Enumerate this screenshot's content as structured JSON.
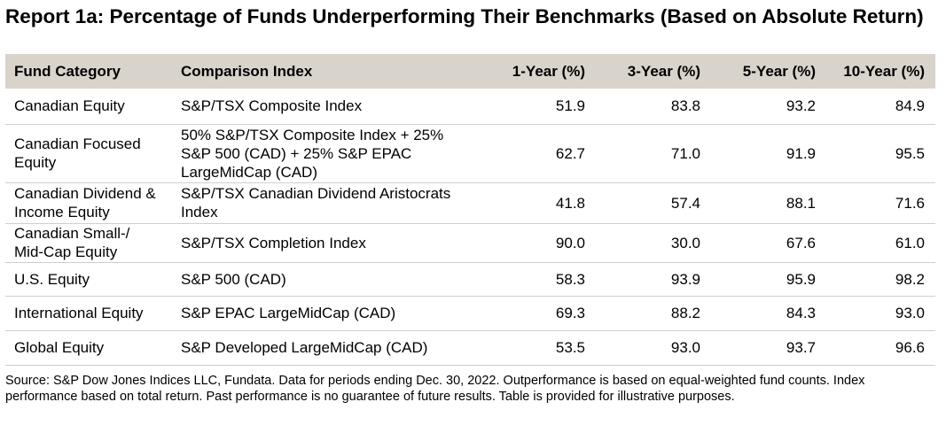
{
  "title": "Report 1a: Percentage of Funds Underperforming Their Benchmarks (Based on Absolute Return)",
  "chart_data": {
    "type": "table",
    "columns": [
      "Fund Category",
      "Comparison Index",
      "1-Year (%)",
      "3-Year (%)",
      "5-Year (%)",
      "10-Year (%)"
    ],
    "rows": [
      {
        "category": "Canadian Equity",
        "index": "S&P/TSX Composite Index",
        "y1": "51.9",
        "y3": "83.8",
        "y5": "93.2",
        "y10": "84.9"
      },
      {
        "category": "Canadian Focused Equity",
        "index": "50% S&P/TSX Composite Index + 25% S&P 500 (CAD) + 25% S&P EPAC LargeMidCap (CAD)",
        "y1": "62.7",
        "y3": "71.0",
        "y5": "91.9",
        "y10": "95.5"
      },
      {
        "category": "Canadian Dividend & Income Equity",
        "index": "S&P/TSX Canadian Dividend Aristocrats Index",
        "y1": "41.8",
        "y3": "57.4",
        "y5": "88.1",
        "y10": "71.6"
      },
      {
        "category": "Canadian Small-/ Mid-Cap Equity",
        "index": "S&P/TSX Completion Index",
        "y1": "90.0",
        "y3": "30.0",
        "y5": "67.6",
        "y10": "61.0"
      },
      {
        "category": "U.S. Equity",
        "index": "S&P 500 (CAD)",
        "y1": "58.3",
        "y3": "93.9",
        "y5": "95.9",
        "y10": "98.2"
      },
      {
        "category": "International Equity",
        "index": "S&P EPAC LargeMidCap (CAD)",
        "y1": "69.3",
        "y3": "88.2",
        "y5": "84.3",
        "y10": "93.0"
      },
      {
        "category": "Global Equity",
        "index": "S&P Developed LargeMidCap (CAD)",
        "y1": "53.5",
        "y3": "93.0",
        "y5": "93.7",
        "y10": "96.6"
      }
    ]
  },
  "footnote": "Source: S&P Dow Jones Indices LLC, Fundata.  Data for periods ending Dec. 30, 2022.  Outperformance is based on equal-weighted fund counts.  Index performance based on total return.  Past performance is no guarantee of future results.  Table is provided for illustrative purposes.",
  "colors": {
    "header_bg": "#d9d4cb",
    "row_divider": "#cfcfcf"
  }
}
